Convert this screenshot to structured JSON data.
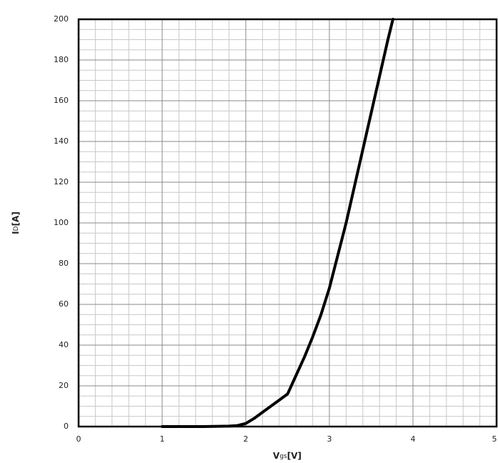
{
  "chart_data": {
    "type": "line",
    "xlabel": {
      "main": "V",
      "sub": "gs",
      "unit": "[V]"
    },
    "ylabel": {
      "main": "I",
      "sub": "D",
      "unit": "[A]"
    },
    "x": [
      1,
      1.5,
      1.8,
      1.9,
      2.0,
      2.1,
      2.2,
      2.3,
      2.4,
      2.5,
      2.6,
      2.7,
      2.8,
      2.9,
      3.0,
      3.1,
      3.2,
      3.3,
      3.4,
      3.5,
      3.6,
      3.7,
      3.76
    ],
    "series": [
      {
        "color": "#000000",
        "values": [
          0,
          0,
          0.2,
          0.5,
          1.5,
          4,
          7,
          10,
          13,
          16,
          25,
          34,
          44,
          55,
          68,
          84,
          100,
          118,
          136,
          154,
          172,
          190,
          200
        ]
      }
    ],
    "xlim": [
      0,
      5
    ],
    "xticks": [
      0,
      1,
      2,
      3,
      4,
      5
    ],
    "ylim": [
      0,
      200
    ],
    "yticks": [
      0,
      20,
      40,
      60,
      80,
      100,
      120,
      140,
      160,
      180,
      200
    ],
    "grid": true,
    "minor_grid": {
      "x": 0.2,
      "y": 5
    }
  }
}
